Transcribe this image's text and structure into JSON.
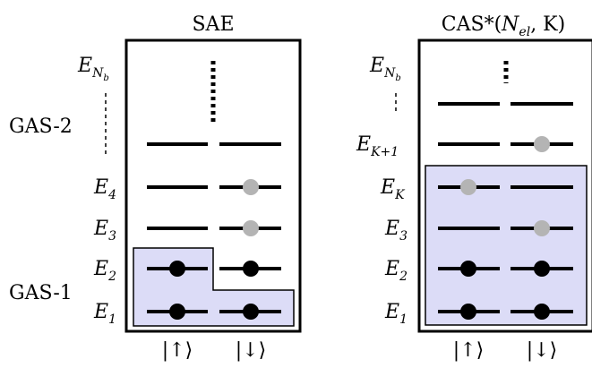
{
  "left_panel": {
    "title": "SAE",
    "gas2_label": "GAS-2",
    "gas1_label": "GAS-1",
    "levels": {
      "Enb": {
        "base": "E",
        "sub": "N",
        "subsub": "b"
      },
      "e4": {
        "base": "E",
        "sub": "4"
      },
      "e3": {
        "base": "E",
        "sub": "3"
      },
      "e2": {
        "base": "E",
        "sub": "2"
      },
      "e1": {
        "base": "E",
        "sub": "1"
      }
    },
    "spin_up": "|↑⟩",
    "spin_down": "|↓⟩"
  },
  "right_panel": {
    "title_prefix": "CAS*(",
    "title_args": "N",
    "title_sub": "el",
    "title_suffix": ", K)",
    "levels": {
      "Enb": {
        "base": "E",
        "sub": "N",
        "subsub": "b"
      },
      "ek1": {
        "base": "E",
        "sub": "K+1"
      },
      "ek": {
        "base": "E",
        "sub": "K"
      },
      "e3": {
        "base": "E",
        "sub": "3"
      },
      "e2": {
        "base": "E",
        "sub": "2"
      },
      "e1": {
        "base": "E",
        "sub": "1"
      }
    },
    "spin_up": "|↑⟩",
    "spin_down": "|↓⟩"
  },
  "colors": {
    "box_fill": "#dcdcf7",
    "line": "#000000",
    "filled_dot": "#000000",
    "partial_dot": "#b4b4b4"
  }
}
